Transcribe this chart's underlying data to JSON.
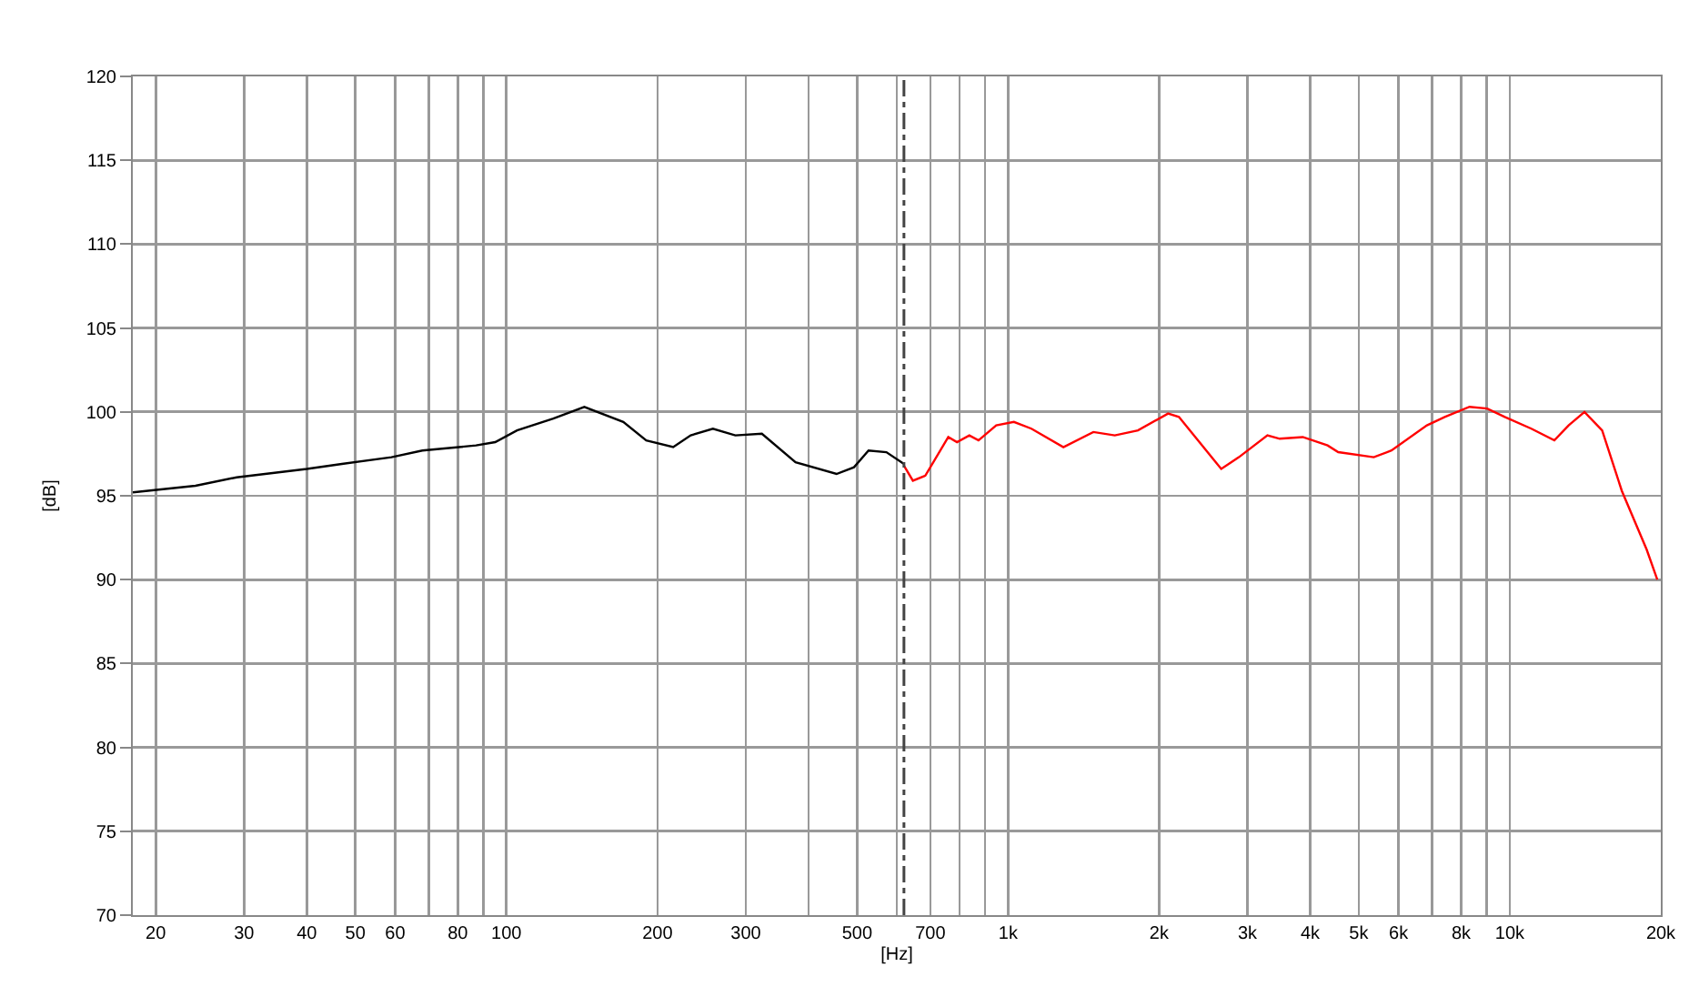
{
  "chart_data": {
    "type": "line",
    "xlabel": "[Hz]",
    "ylabel": "[dB]",
    "log": "x",
    "grid": true,
    "marker": "none",
    "line_style": "solid",
    "xlim": [
      18,
      20000
    ],
    "ylim": [
      70,
      120
    ],
    "xticks": [
      20,
      30,
      40,
      50,
      60,
      {
        "value": 70,
        "label": null
      },
      80,
      {
        "value": 90,
        "label": null
      },
      100,
      200,
      300,
      {
        "value": 400,
        "label": null
      },
      500,
      {
        "value": 600,
        "label": null
      },
      700,
      {
        "value": 800,
        "label": null
      },
      {
        "value": 900,
        "label": null
      },
      {
        "value": 1000,
        "label": "1k"
      },
      {
        "value": 2000,
        "label": "2k"
      },
      {
        "value": 3000,
        "label": "3k"
      },
      {
        "value": 4000,
        "label": "4k"
      },
      {
        "value": 5000,
        "label": "5k"
      },
      {
        "value": 6000,
        "label": "6k"
      },
      {
        "value": 7000,
        "label": null
      },
      {
        "value": 8000,
        "label": "8k"
      },
      {
        "value": 9000,
        "label": null
      },
      {
        "value": 10000,
        "label": "10k"
      },
      {
        "value": 20000,
        "label": "20k"
      }
    ],
    "yticks": [
      70,
      75,
      80,
      85,
      90,
      95,
      100,
      105,
      110,
      115,
      120
    ],
    "ref_lines": [
      {
        "axis": "x",
        "value": 620,
        "label": null,
        "color": "#444444",
        "line_style": "dashed"
      }
    ],
    "series": [
      {
        "color": "#000000",
        "x": [
          18,
          24,
          29,
          40,
          47,
          59,
          68,
          87,
          95,
          105,
          124,
          143,
          171,
          190,
          215,
          233,
          258,
          286,
          323,
          377,
          455,
          493,
          527,
          572,
          620
        ],
        "values": [
          95.2,
          95.6,
          96.1,
          96.6,
          96.9,
          97.3,
          97.7,
          98.0,
          98.2,
          98.9,
          99.6,
          100.3,
          99.4,
          98.3,
          97.9,
          98.6,
          99.0,
          98.6,
          98.7,
          97.0,
          96.3,
          96.7,
          97.7,
          97.6,
          96.9
        ]
      },
      {
        "color": "#ff0000",
        "x": [
          620,
          646,
          684,
          760,
          791,
          837,
          873,
          947,
          1027,
          1113,
          1289,
          1479,
          1632,
          1815,
          2084,
          2190,
          2660,
          2884,
          3288,
          3479,
          3867,
          4334,
          4550,
          5356,
          5810,
          6837,
          7420,
          8312,
          9016,
          9775,
          11040,
          12270,
          13100,
          14090,
          15280,
          16720,
          18740,
          19680
        ],
        "values": [
          96.8,
          95.9,
          96.2,
          98.5,
          98.2,
          98.6,
          98.3,
          99.2,
          99.4,
          99.0,
          97.9,
          98.8,
          98.6,
          98.9,
          99.9,
          99.7,
          96.6,
          97.3,
          98.6,
          98.4,
          98.5,
          98.0,
          97.6,
          97.3,
          97.7,
          99.2,
          99.7,
          100.3,
          100.2,
          99.7,
          99.0,
          98.3,
          99.2,
          100.0,
          98.9,
          95.3,
          91.8,
          90.0
        ]
      }
    ]
  }
}
